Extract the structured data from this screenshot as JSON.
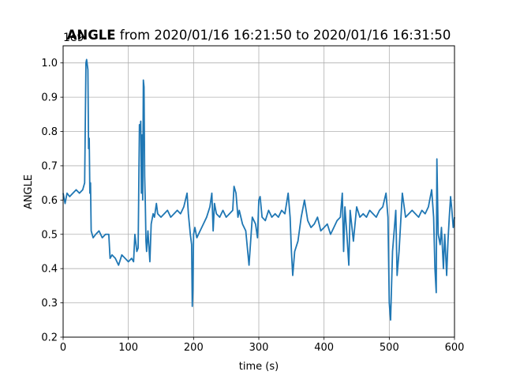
{
  "chart_data": {
    "type": "line",
    "title_bold": "ANGLE",
    "title_rest": " from 2020/01/16 16:21:50 to 2020/01/16 16:31:50",
    "xlabel": "time (s)",
    "ylabel": "ANGLE",
    "y_offset_text": "1e9",
    "xlim": [
      0,
      600
    ],
    "ylim": [
      0.2,
      1.05
    ],
    "x_ticks": [
      0,
      100,
      200,
      300,
      400,
      500,
      600
    ],
    "x_tick_labels": [
      "0",
      "100",
      "200",
      "300",
      "400",
      "500",
      "600"
    ],
    "y_ticks": [
      0.2,
      0.3,
      0.4,
      0.5,
      0.6,
      0.7,
      0.8,
      0.9,
      1.0
    ],
    "y_tick_labels": [
      "0.2",
      "0.3",
      "0.4",
      "0.5",
      "0.6",
      "0.7",
      "0.8",
      "0.9",
      "1.0"
    ],
    "grid": true,
    "color": "#1f77b4",
    "series": [
      {
        "x": [
          0,
          3,
          6,
          10,
          15,
          20,
          25,
          30,
          33,
          35,
          36,
          38,
          39,
          40,
          41,
          42,
          43,
          46,
          50,
          55,
          60,
          65,
          70,
          72,
          75,
          80,
          85,
          90,
          95,
          100,
          105,
          108,
          110,
          113,
          115,
          117,
          118,
          119,
          120,
          121,
          122,
          123,
          124,
          125,
          126,
          127,
          128,
          130,
          133,
          135,
          138,
          140,
          143,
          145,
          150,
          155,
          160,
          165,
          170,
          175,
          180,
          185,
          190,
          192,
          195,
          197,
          198,
          199,
          200,
          202,
          205,
          210,
          215,
          220,
          225,
          228,
          230,
          232,
          235,
          240,
          245,
          250,
          255,
          260,
          262,
          265,
          268,
          270,
          275,
          280,
          285,
          290,
          295,
          298,
          300,
          302,
          305,
          310,
          315,
          320,
          325,
          330,
          335,
          340,
          345,
          348,
          350,
          352,
          355,
          360,
          365,
          370,
          375,
          380,
          385,
          390,
          395,
          400,
          405,
          410,
          415,
          420,
          425,
          428,
          430,
          432,
          435,
          438,
          440,
          445,
          450,
          455,
          460,
          465,
          470,
          475,
          480,
          485,
          490,
          495,
          498,
          500,
          502,
          505,
          510,
          512,
          515,
          520,
          525,
          530,
          535,
          540,
          545,
          550,
          555,
          560,
          565,
          568,
          570,
          572,
          573,
          575,
          578,
          580,
          583,
          585,
          588,
          590,
          592,
          594,
          596,
          598,
          600
        ],
        "y": [
          0.62,
          0.59,
          0.62,
          0.61,
          0.62,
          0.63,
          0.62,
          0.63,
          0.65,
          1.0,
          1.01,
          0.98,
          0.75,
          0.78,
          0.62,
          0.65,
          0.51,
          0.49,
          0.5,
          0.51,
          0.49,
          0.5,
          0.5,
          0.43,
          0.44,
          0.43,
          0.41,
          0.44,
          0.43,
          0.42,
          0.43,
          0.42,
          0.5,
          0.45,
          0.46,
          0.82,
          0.8,
          0.83,
          0.62,
          0.79,
          0.6,
          0.95,
          0.93,
          0.67,
          0.59,
          0.48,
          0.45,
          0.51,
          0.42,
          0.53,
          0.56,
          0.55,
          0.59,
          0.56,
          0.55,
          0.56,
          0.57,
          0.55,
          0.56,
          0.57,
          0.56,
          0.58,
          0.62,
          0.56,
          0.5,
          0.47,
          0.29,
          0.34,
          0.5,
          0.52,
          0.49,
          0.51,
          0.53,
          0.55,
          0.58,
          0.62,
          0.51,
          0.59,
          0.56,
          0.55,
          0.57,
          0.55,
          0.56,
          0.57,
          0.64,
          0.62,
          0.55,
          0.57,
          0.53,
          0.51,
          0.41,
          0.55,
          0.53,
          0.49,
          0.6,
          0.61,
          0.55,
          0.54,
          0.57,
          0.55,
          0.56,
          0.55,
          0.57,
          0.56,
          0.62,
          0.55,
          0.45,
          0.38,
          0.45,
          0.48,
          0.55,
          0.6,
          0.54,
          0.52,
          0.53,
          0.55,
          0.51,
          0.52,
          0.53,
          0.5,
          0.52,
          0.54,
          0.55,
          0.62,
          0.45,
          0.58,
          0.5,
          0.41,
          0.57,
          0.48,
          0.58,
          0.55,
          0.56,
          0.55,
          0.57,
          0.56,
          0.55,
          0.57,
          0.58,
          0.62,
          0.55,
          0.3,
          0.25,
          0.45,
          0.57,
          0.38,
          0.45,
          0.62,
          0.55,
          0.56,
          0.57,
          0.56,
          0.55,
          0.57,
          0.56,
          0.58,
          0.63,
          0.55,
          0.4,
          0.33,
          0.72,
          0.5,
          0.47,
          0.52,
          0.4,
          0.5,
          0.38,
          0.48,
          0.55,
          0.61,
          0.57,
          0.52,
          0.55
        ]
      }
    ]
  }
}
